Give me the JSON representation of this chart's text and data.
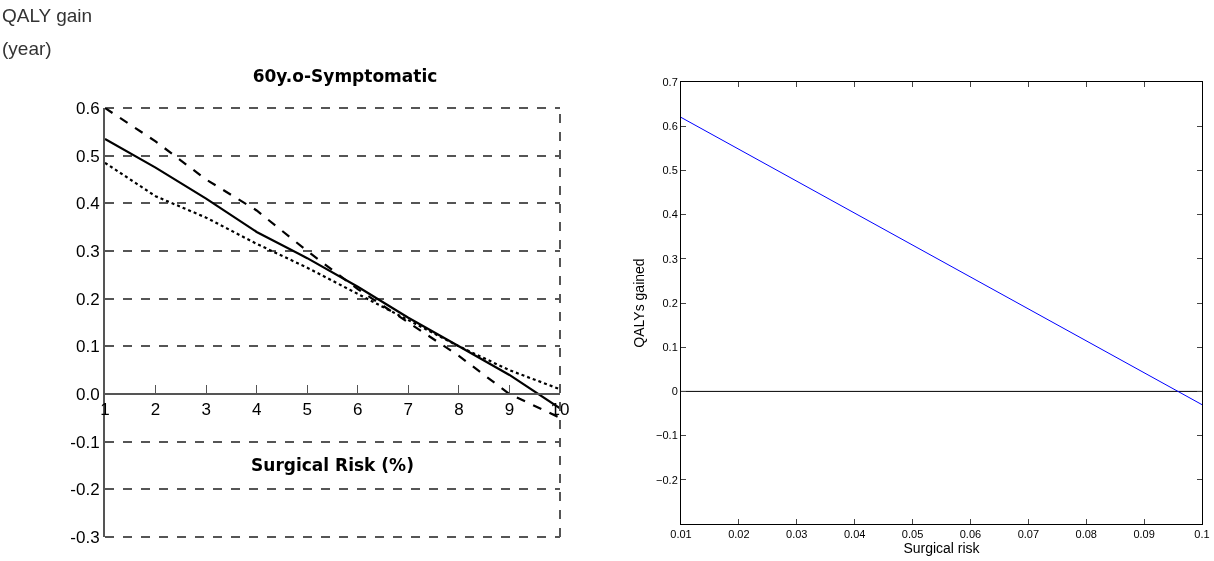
{
  "chart_data": [
    {
      "type": "line",
      "title": "60y.o-Symptomatic",
      "ylabel": "QALY gain\n(year)",
      "xlabel": "Surgical Risk (%)",
      "x": [
        1,
        2,
        3,
        4,
        5,
        6,
        7,
        8,
        9,
        10
      ],
      "series": [
        {
          "color": "#000000",
          "line_style": "solid",
          "values": [
            0.535,
            0.475,
            0.41,
            0.34,
            0.285,
            0.225,
            0.16,
            0.1,
            0.04,
            -0.03
          ]
        },
        {
          "color": "#000000",
          "line_style": "dashed",
          "values": [
            0.6,
            0.53,
            0.45,
            0.385,
            0.3,
            0.22,
            0.15,
            0.08,
            0.0,
            -0.05
          ]
        },
        {
          "color": "#000000",
          "line_style": "dotted",
          "values": [
            0.485,
            0.415,
            0.37,
            0.315,
            0.265,
            0.21,
            0.155,
            0.1,
            0.05,
            0.01
          ]
        }
      ],
      "xlim": [
        1,
        10
      ],
      "xticks": [
        1,
        2,
        3,
        4,
        5,
        6,
        7,
        8,
        9,
        10
      ],
      "ylim": [
        -0.3,
        0.6
      ],
      "yticks": [
        {
          "value": -0.3,
          "label": "-0.3"
        },
        {
          "value": -0.2,
          "label": "-0.2"
        },
        {
          "value": -0.1,
          "label": "-0.1"
        },
        {
          "value": 0,
          "label": "0.0"
        },
        0.1,
        0.2,
        0.3,
        0.4,
        0.5,
        0.6
      ],
      "grid": "y",
      "marker": "none"
    },
    {
      "type": "line",
      "xlabel": "Surgical risk",
      "ylabel": "QALYs gained",
      "x": [
        0.01,
        0.1
      ],
      "series": [
        {
          "color": "#0000ff",
          "values": [
            0.62,
            -0.03
          ]
        }
      ],
      "xlim": [
        0.01,
        0.1
      ],
      "xticks": [
        0.01,
        0.02,
        0.03,
        0.04,
        0.05,
        0.06,
        0.07,
        0.08,
        0.09,
        0.1
      ],
      "ylim": [
        -0.3,
        0.7
      ],
      "yticks": [
        {
          "value": -0.2,
          "label": "−0.2"
        },
        {
          "value": -0.1,
          "label": "−0.1"
        },
        0,
        0.1,
        0.2,
        0.3,
        0.4,
        0.5,
        0.6,
        0.7
      ],
      "ref_lines": [
        {
          "axis": "y",
          "value": 0,
          "color": "#000000"
        }
      ],
      "grid": false,
      "marker": "none",
      "line_style": "solid"
    }
  ]
}
